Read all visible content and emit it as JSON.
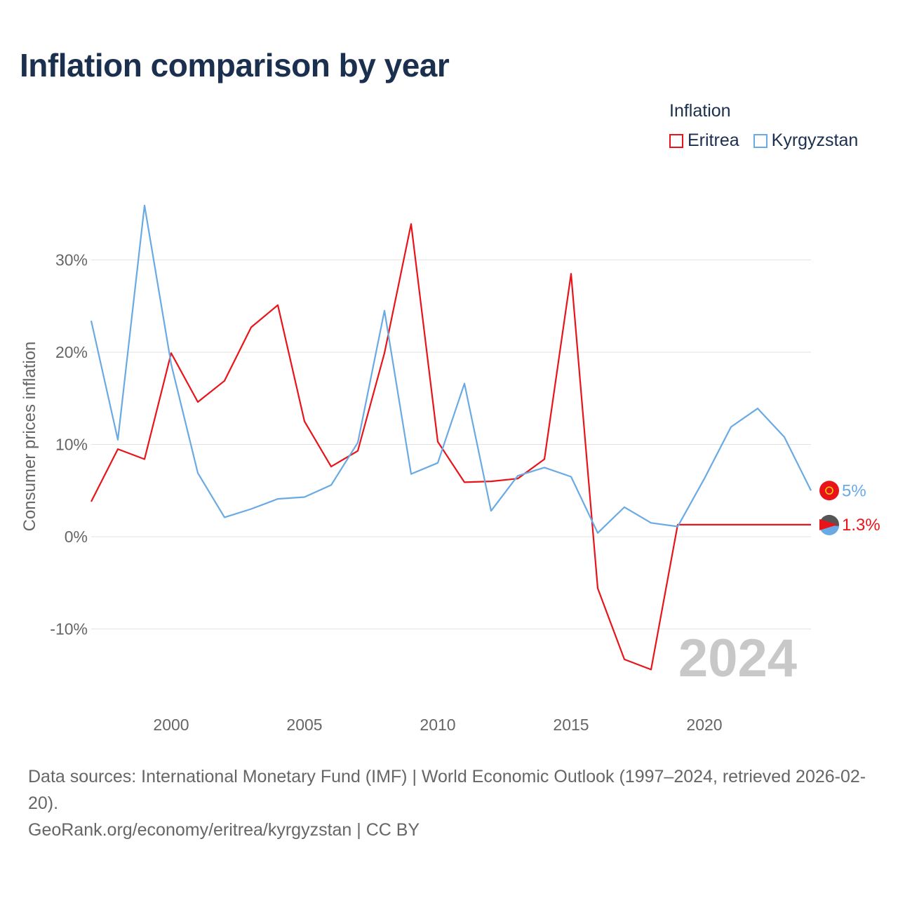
{
  "header": {
    "title": "Inflation comparison by year"
  },
  "legend": {
    "title": "Inflation",
    "items": [
      {
        "label": "Eritrea",
        "color": "#e8141a"
      },
      {
        "label": "Kyrgyzstan",
        "color": "#6aaae4"
      }
    ]
  },
  "chart_data": {
    "type": "line",
    "title": "Inflation comparison by year",
    "xlabel": "",
    "ylabel": "Consumer prices inflation",
    "xlim": [
      1997,
      2024
    ],
    "ylim": [
      -15,
      35
    ],
    "y_ticks": [
      -10,
      0,
      10,
      20,
      30
    ],
    "y_tick_labels": [
      "-10%",
      "0%",
      "10%",
      "20%",
      "30%"
    ],
    "x_ticks": [
      2000,
      2005,
      2010,
      2015,
      2020
    ],
    "x_tick_labels": [
      "2000",
      "2005",
      "2010",
      "2015",
      "2020"
    ],
    "grid": true,
    "year_watermark": "2024",
    "x": [
      1997,
      1998,
      1999,
      2000,
      2001,
      2002,
      2003,
      2004,
      2005,
      2006,
      2007,
      2008,
      2009,
      2010,
      2011,
      2012,
      2013,
      2014,
      2015,
      2016,
      2017,
      2018,
      2019,
      2020,
      2021,
      2022,
      2023,
      2024
    ],
    "series": [
      {
        "name": "Eritrea",
        "color": "#e8141a",
        "values": [
          3.8,
          9.5,
          8.4,
          19.9,
          14.6,
          16.9,
          22.7,
          25.1,
          12.5,
          7.6,
          9.3,
          19.9,
          33.9,
          10.3,
          5.9,
          6.0,
          6.3,
          8.4,
          28.5,
          -5.6,
          -13.3,
          -14.4,
          1.3,
          1.3,
          1.3,
          1.3,
          1.3,
          1.3
        ],
        "end_label": "1.3%"
      },
      {
        "name": "Kyrgyzstan",
        "color": "#6aaae4",
        "values": [
          23.4,
          10.5,
          35.9,
          18.7,
          6.9,
          2.1,
          3.0,
          4.1,
          4.3,
          5.6,
          10.2,
          24.5,
          6.8,
          8.0,
          16.6,
          2.8,
          6.6,
          7.5,
          6.5,
          0.4,
          3.2,
          1.5,
          1.1,
          6.3,
          11.9,
          13.9,
          10.8,
          5.0
        ],
        "end_label": "5%"
      }
    ]
  },
  "footer": {
    "source": "Data sources: International Monetary Fund (IMF) | World Economic Outlook (1997–2024, retrieved 2026-02-20).",
    "credit": "GeoRank.org/economy/eritrea/kyrgyzstan | CC BY"
  }
}
